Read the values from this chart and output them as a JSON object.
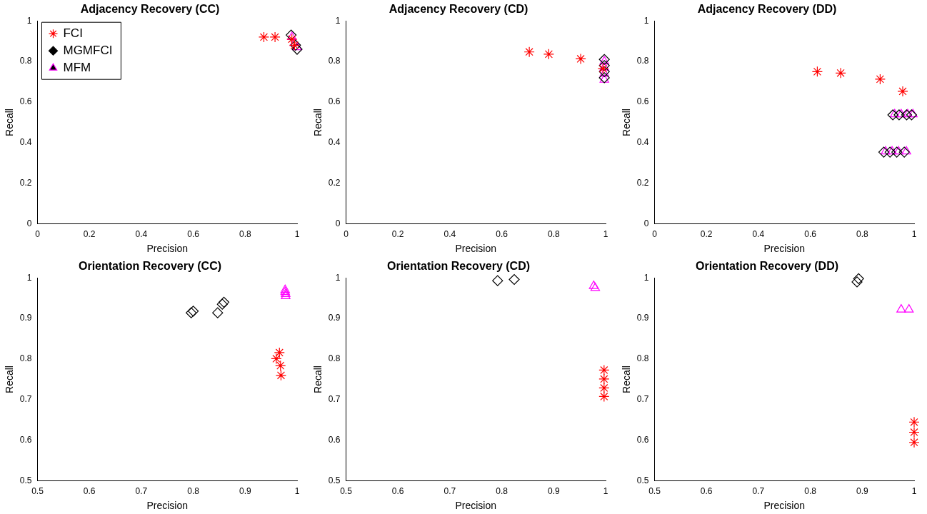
{
  "chart_data": [
    {
      "type": "scatter",
      "title": "Adjacency Recovery (CC)",
      "xlabel": "Precision",
      "ylabel": "Recall",
      "xlim": [
        0,
        1
      ],
      "ylim": [
        0,
        1
      ],
      "xticks": [
        0,
        0.2,
        0.4,
        0.6,
        0.8,
        1
      ],
      "yticks": [
        0,
        0.2,
        0.4,
        0.6,
        0.8,
        1
      ],
      "grid": false,
      "legend": "top left",
      "series": [
        {
          "name": "FCI",
          "color": "#ff0000",
          "marker": "cross",
          "x": [
            0.872,
            0.915,
            0.98,
            0.99
          ],
          "values": [
            0.92,
            0.92,
            0.91,
            0.88
          ]
        },
        {
          "name": "MGMFCI",
          "color": "#000000",
          "marker": "diamond",
          "x": [
            0.977,
            0.994,
            1.0
          ],
          "values": [
            0.93,
            0.88,
            0.86
          ]
        },
        {
          "name": "MFM",
          "color": "#ff00ff",
          "marker": "triangle",
          "x": [
            0.98,
            0.99,
            1.0
          ],
          "values": [
            0.92,
            0.89,
            0.87
          ]
        }
      ]
    },
    {
      "type": "scatter",
      "title": "Adjacency Recovery (CD)",
      "xlabel": "Precision",
      "ylabel": "Recall",
      "xlim": [
        0,
        1
      ],
      "ylim": [
        0,
        1
      ],
      "xticks": [
        0,
        0.2,
        0.4,
        0.6,
        0.8,
        1
      ],
      "yticks": [
        0,
        0.2,
        0.4,
        0.6,
        0.8,
        1
      ],
      "grid": false,
      "legend": false,
      "series": [
        {
          "color": "#ff0000",
          "marker": "cross",
          "x": [
            0.706,
            0.781,
            0.904,
            0.99
          ],
          "values": [
            0.847,
            0.836,
            0.813,
            0.765
          ]
        },
        {
          "color": "#000000",
          "marker": "diamond",
          "x": [
            0.995,
            0.995,
            0.995,
            0.995
          ],
          "values": [
            0.81,
            0.78,
            0.75,
            0.72
          ]
        },
        {
          "color": "#ff00ff",
          "marker": "triangle",
          "x": [
            0.995,
            0.995,
            0.995,
            0.995
          ],
          "values": [
            0.8,
            0.77,
            0.74,
            0.71
          ]
        }
      ]
    },
    {
      "type": "scatter",
      "title": "Adjacency Recovery (DD)",
      "xlabel": "Precision",
      "ylabel": "Recall",
      "xlim": [
        0,
        1
      ],
      "ylim": [
        0,
        1
      ],
      "xticks": [
        0,
        0.2,
        0.4,
        0.6,
        0.8,
        1
      ],
      "yticks": [
        0,
        0.2,
        0.4,
        0.6,
        0.8,
        1
      ],
      "grid": false,
      "legend": false,
      "series": [
        {
          "color": "#ff0000",
          "marker": "cross",
          "x": [
            0.627,
            0.717,
            0.869,
            0.956
          ],
          "values": [
            0.75,
            0.743,
            0.713,
            0.653
          ]
        },
        {
          "color": "#000000",
          "marker": "diamond",
          "x": [
            0.918,
            0.942,
            0.971,
            0.99,
            0.883,
            0.907,
            0.933,
            0.962
          ],
          "values": [
            0.537,
            0.537,
            0.537,
            0.537,
            0.354,
            0.354,
            0.354,
            0.354
          ]
        },
        {
          "color": "#ff00ff",
          "marker": "triangle",
          "x": [
            0.925,
            0.95,
            0.975,
            0.995,
            0.89,
            0.915,
            0.94,
            0.97
          ],
          "values": [
            0.54,
            0.54,
            0.54,
            0.54,
            0.357,
            0.357,
            0.357,
            0.357
          ]
        }
      ]
    },
    {
      "type": "scatter",
      "title": "Orientation Recovery (CC)",
      "xlabel": "Precision",
      "ylabel": "Recall",
      "xlim": [
        0.5,
        1
      ],
      "ylim": [
        0.5,
        1
      ],
      "xticks": [
        0.5,
        0.6,
        0.7,
        0.8,
        0.9,
        1
      ],
      "yticks": [
        0.5,
        0.6,
        0.7,
        0.8,
        0.9,
        1
      ],
      "grid": false,
      "legend": false,
      "series": [
        {
          "color": "#ff0000",
          "marker": "cross",
          "x": [
            0.966,
            0.96,
            0.968,
            0.969
          ],
          "values": [
            0.816,
            0.801,
            0.784,
            0.76
          ]
        },
        {
          "color": "#000000",
          "marker": "diamond",
          "x": [
            0.796,
            0.8,
            0.847,
            0.856,
            0.859
          ],
          "values": [
            0.914,
            0.918,
            0.914,
            0.935,
            0.94
          ]
        },
        {
          "color": "#ff00ff",
          "marker": "triangle",
          "x": [
            0.977,
            0.977,
            0.978,
            0.978
          ],
          "values": [
            0.97,
            0.965,
            0.96,
            0.955
          ]
        }
      ]
    },
    {
      "type": "scatter",
      "title": "Orientation Recovery (CD)",
      "xlabel": "Precision",
      "ylabel": "Recall",
      "xlim": [
        0.5,
        1
      ],
      "ylim": [
        0.5,
        1
      ],
      "xticks": [
        0.5,
        0.6,
        0.7,
        0.8,
        0.9,
        1
      ],
      "yticks": [
        0.5,
        0.6,
        0.7,
        0.8,
        0.9,
        1
      ],
      "grid": false,
      "legend": false,
      "series": [
        {
          "color": "#ff0000",
          "marker": "cross",
          "x": [
            0.997,
            0.997,
            0.997,
            0.997
          ],
          "values": [
            0.773,
            0.751,
            0.729,
            0.708
          ]
        },
        {
          "color": "#000000",
          "marker": "diamond",
          "x": [
            0.792,
            0.824
          ],
          "values": [
            0.993,
            0.996
          ]
        },
        {
          "color": "#ff00ff",
          "marker": "triangle",
          "x": [
            0.977,
            0.98
          ],
          "values": [
            0.98,
            0.975
          ]
        }
      ]
    },
    {
      "type": "scatter",
      "title": "Orientation Recovery (DD)",
      "xlabel": "Precision",
      "ylabel": "Recall",
      "xlim": [
        0.5,
        1
      ],
      "ylim": [
        0.5,
        1
      ],
      "xticks": [
        0.5,
        0.6,
        0.7,
        0.8,
        0.9,
        1
      ],
      "yticks": [
        0.5,
        0.6,
        0.7,
        0.8,
        0.9,
        1
      ],
      "grid": false,
      "legend": false,
      "series": [
        {
          "color": "#ff0000",
          "marker": "cross",
          "x": [
            1.0,
            1.0,
            1.0
          ],
          "values": [
            0.645,
            0.62,
            0.595
          ]
        },
        {
          "color": "#000000",
          "marker": "diamond",
          "x": [
            0.893,
            0.89
          ],
          "values": [
            0.998,
            0.99
          ]
        },
        {
          "color": "#ff00ff",
          "marker": "triangle",
          "x": [
            0.975,
            0.99
          ],
          "values": [
            0.922,
            0.922
          ]
        }
      ]
    }
  ]
}
